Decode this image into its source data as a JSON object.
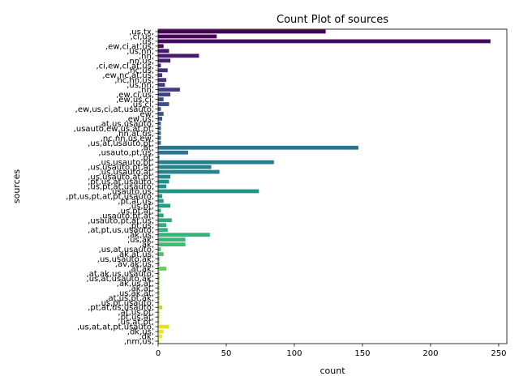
{
  "chart_data": {
    "type": "bar",
    "orientation": "horizontal",
    "title": "Count Plot of sources",
    "xlabel": "count",
    "ylabel": "sources",
    "xlim": [
      0,
      256
    ],
    "xticks": [
      0,
      50,
      100,
      150,
      200,
      250
    ],
    "grid": false,
    "legend": "none",
    "colormap": "viridis",
    "categories": [
      ",us,tx,",
      ",ci,us,",
      ",us,",
      ",ew,ci,at,us,",
      ",us,nn,",
      ",nn,",
      ",nn,us,",
      ",ci,ew,ci,at,us,",
      ",nc,us,",
      ",ew,nc,at,us,",
      ",nc,nn,us,",
      ",us,nn,",
      ",nn,",
      ",ew,ci,us,",
      ",ew,us,ci,",
      ",us,ci,",
      ",ew,us,ci,at,usauto,",
      ",ew,",
      ",ew,us,",
      ",at,us,usauto,",
      ",usauto,ew,us,at,pt,",
      ",nn,at,us,",
      ",nc,nn,us,ew,",
      ",us,at,usauto,pt,",
      ",at,",
      ",usauto,pt,us,",
      ",pt,",
      ",us,usauto,pt,",
      ",us,usauto,pt,at,",
      ",us,usauto,at,",
      ",us,usauto,at,pt,",
      ",pt,us,at,usauto,",
      ",us,pt,at,usauto,",
      ",usauto,us,",
      ",pt,us,pt,at,pt,usauto,",
      ",pt,at,us,",
      ",us,pt,",
      ",us,pt,at,",
      ",usauto,pt,at,",
      ",usauto,pt,at,us,",
      ",pt,us,",
      ",at,pt,us,usauto,",
      ",ak,us,",
      ",us,ak,",
      ",ak,",
      ",us,at,usauto,",
      ",ak,at,us,",
      ",us,usauto,ak,",
      ",av,ak,us,",
      ",at,ak,",
      ",at,ak,us,usauto,",
      ",us,at,usauto,ak,",
      ",ak,us,at,",
      ",ak,at,",
      ",us,ak,at,",
      ",at,us,pt,ak,",
      ",us,pt,usauto,",
      ",pt,at,us,usauto,",
      ",at,us,pt,",
      ",pt,us,at,",
      ",us,at,pt,",
      ",us,at,at,pt,usauto,",
      ",dk,us,",
      ",dk,",
      ",nm,us,"
    ],
    "values": [
      123,
      43,
      244,
      4,
      8,
      30,
      9,
      2,
      7,
      3,
      6,
      5,
      16,
      9,
      4,
      8,
      2,
      4,
      3,
      2,
      2,
      2,
      2,
      2,
      147,
      22,
      1,
      85,
      39,
      45,
      9,
      8,
      6,
      74,
      3,
      4,
      9,
      2,
      4,
      10,
      6,
      7,
      38,
      20,
      20,
      2,
      4,
      1,
      1,
      6,
      1,
      1,
      1,
      1,
      1,
      1,
      1,
      3,
      1,
      1,
      1,
      8,
      4,
      3,
      1
    ]
  }
}
